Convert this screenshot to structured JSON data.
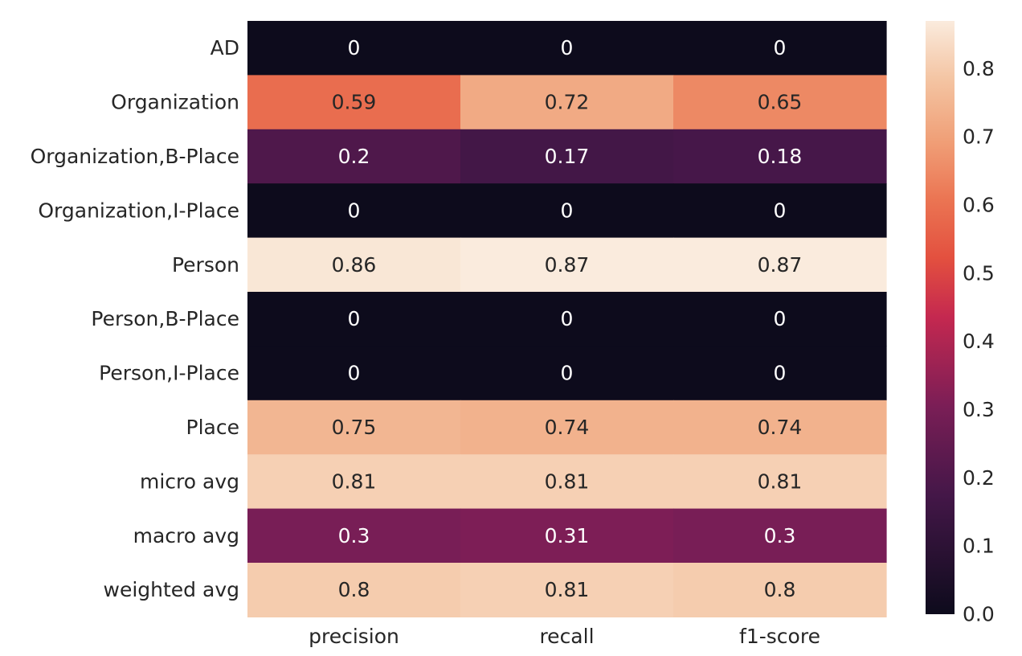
{
  "chart_data": {
    "type": "heatmap",
    "title": "",
    "xlabel": "",
    "ylabel": "",
    "columns": [
      "precision",
      "recall",
      "f1-score"
    ],
    "rows": [
      "AD",
      "Organization",
      "Organization,B-Place",
      "Organization,I-Place",
      "Person",
      "Person,B-Place",
      "Person,I-Place",
      "Place",
      "micro avg",
      "macro avg",
      "weighted avg"
    ],
    "values": [
      [
        0,
        0,
        0
      ],
      [
        0.59,
        0.72,
        0.65
      ],
      [
        0.2,
        0.17,
        0.18
      ],
      [
        0,
        0,
        0
      ],
      [
        0.86,
        0.87,
        0.87
      ],
      [
        0,
        0,
        0
      ],
      [
        0,
        0,
        0
      ],
      [
        0.75,
        0.74,
        0.74
      ],
      [
        0.81,
        0.81,
        0.81
      ],
      [
        0.3,
        0.31,
        0.3
      ],
      [
        0.8,
        0.81,
        0.8
      ]
    ],
    "annotations": [
      [
        "0",
        "0",
        "0"
      ],
      [
        "0.59",
        "0.72",
        "0.65"
      ],
      [
        "0.2",
        "0.17",
        "0.18"
      ],
      [
        "0",
        "0",
        "0"
      ],
      [
        "0.86",
        "0.87",
        "0.87"
      ],
      [
        "0",
        "0",
        "0"
      ],
      [
        "0",
        "0",
        "0"
      ],
      [
        "0.75",
        "0.74",
        "0.74"
      ],
      [
        "0.81",
        "0.81",
        "0.81"
      ],
      [
        "0.3",
        "0.31",
        "0.3"
      ],
      [
        "0.8",
        "0.81",
        "0.8"
      ]
    ],
    "colormap": "rocket",
    "colorbar": {
      "vmin": 0.0,
      "vmax": 0.87,
      "ticks": [
        0.0,
        0.1,
        0.2,
        0.3,
        0.4,
        0.5,
        0.6,
        0.7,
        0.8
      ],
      "tick_labels": [
        "0.0",
        "0.1",
        "0.2",
        "0.3",
        "0.4",
        "0.5",
        "0.6",
        "0.7",
        "0.8"
      ],
      "position": "right"
    },
    "grid": false
  }
}
